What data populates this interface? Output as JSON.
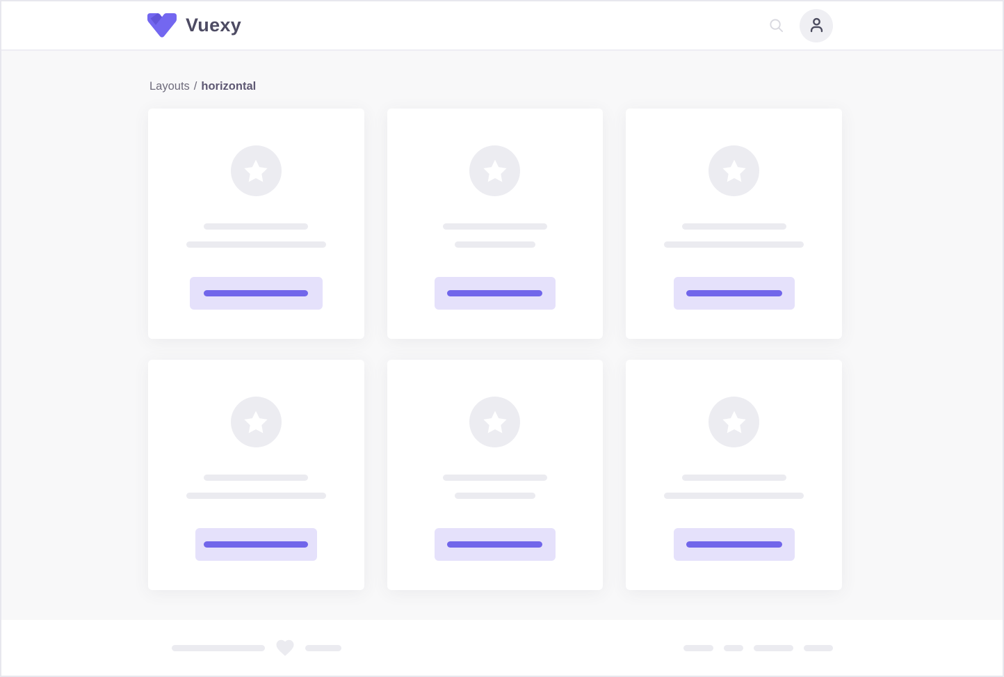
{
  "header": {
    "brand": "Vuexy"
  },
  "breadcrumb": {
    "section": "Layouts",
    "separator": "/",
    "current": "horizontal"
  },
  "cards": [
    {
      "line_widths": [
        150,
        201
      ],
      "button_width": 191,
      "button_line_width": 150
    },
    {
      "line_widths": [
        150,
        116
      ],
      "button_width": 174,
      "button_line_width": 137
    },
    {
      "line_widths": [
        150,
        201
      ],
      "button_width": 174,
      "button_line_width": 138
    },
    {
      "line_widths": [
        150,
        201
      ],
      "button_width": 175,
      "button_line_width": 150
    },
    {
      "line_widths": [
        150,
        116
      ],
      "button_width": 174,
      "button_line_width": 137
    },
    {
      "line_widths": [
        150,
        201
      ],
      "button_width": 174,
      "button_line_width": 138
    }
  ],
  "footer": {
    "left_line_widths": [
      134,
      52
    ],
    "right_pill_widths": [
      43,
      28,
      57,
      42
    ]
  },
  "icons": {
    "brand": "vuexy-logo-icon",
    "header": [
      "search-icon",
      "user-icon"
    ],
    "card_badge": "star-icon",
    "footer": "heart-icon"
  },
  "colors": {
    "accent": "#7367f0",
    "button_bg": "#e5e1fb",
    "button_line": "#7166ea",
    "placeholder": "#ebebf0",
    "circle": "#ececf1",
    "background": "#f8f8f9",
    "surface": "#ffffff",
    "border": "#e7e7ee",
    "text_dark": "#4d4b63",
    "text_muted": "#6e6b7b",
    "breadcrumb_current": "#5e5873",
    "icon_muted": "#d9d9e0",
    "avatar_bg": "#efeff3",
    "avatar_icon": "#4b4b5e"
  }
}
